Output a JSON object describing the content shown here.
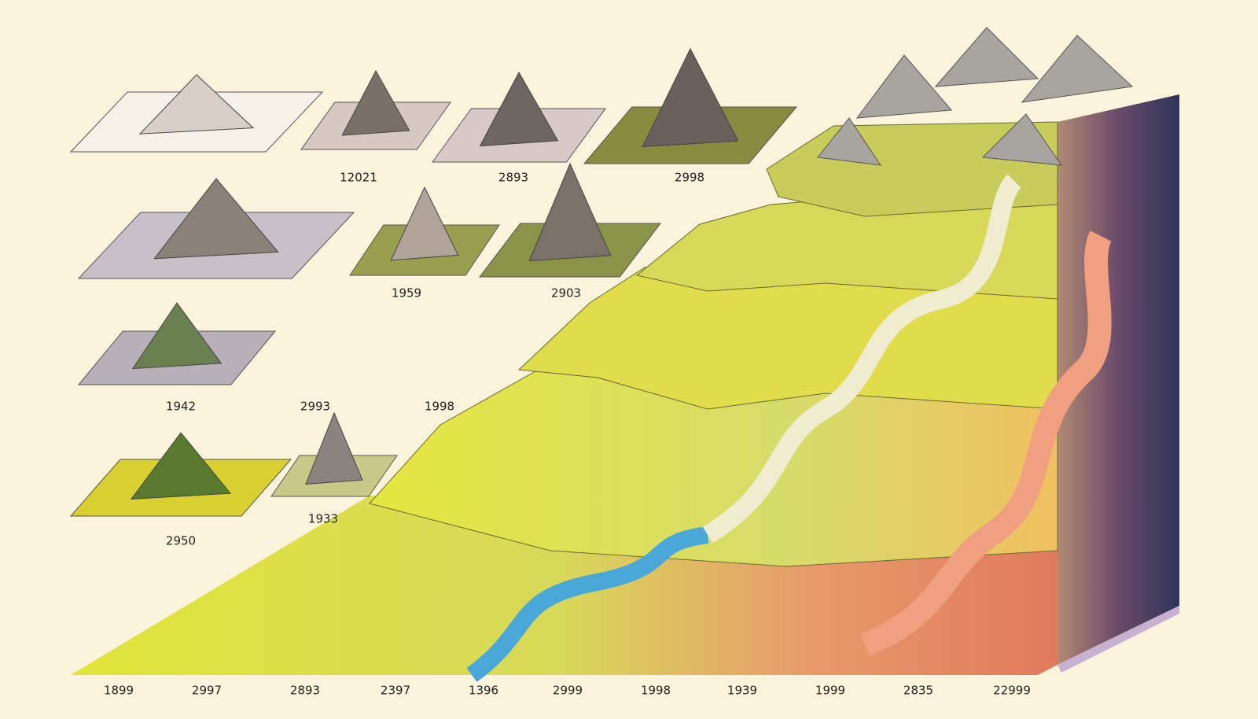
{
  "tiles": [
    {
      "label": "12021"
    },
    {
      "label": "2893"
    },
    {
      "label": "2998"
    },
    {
      "label": "1959"
    },
    {
      "label": "2903"
    },
    {
      "label": "1942"
    },
    {
      "label": "2993"
    },
    {
      "label": "1998"
    },
    {
      "label": "2950"
    },
    {
      "label": "1933"
    }
  ],
  "timeline": [
    "1899",
    "2997",
    "2893",
    "2397",
    "1396",
    "2999",
    "1998",
    "1939",
    "1999",
    "2835",
    "22999"
  ]
}
